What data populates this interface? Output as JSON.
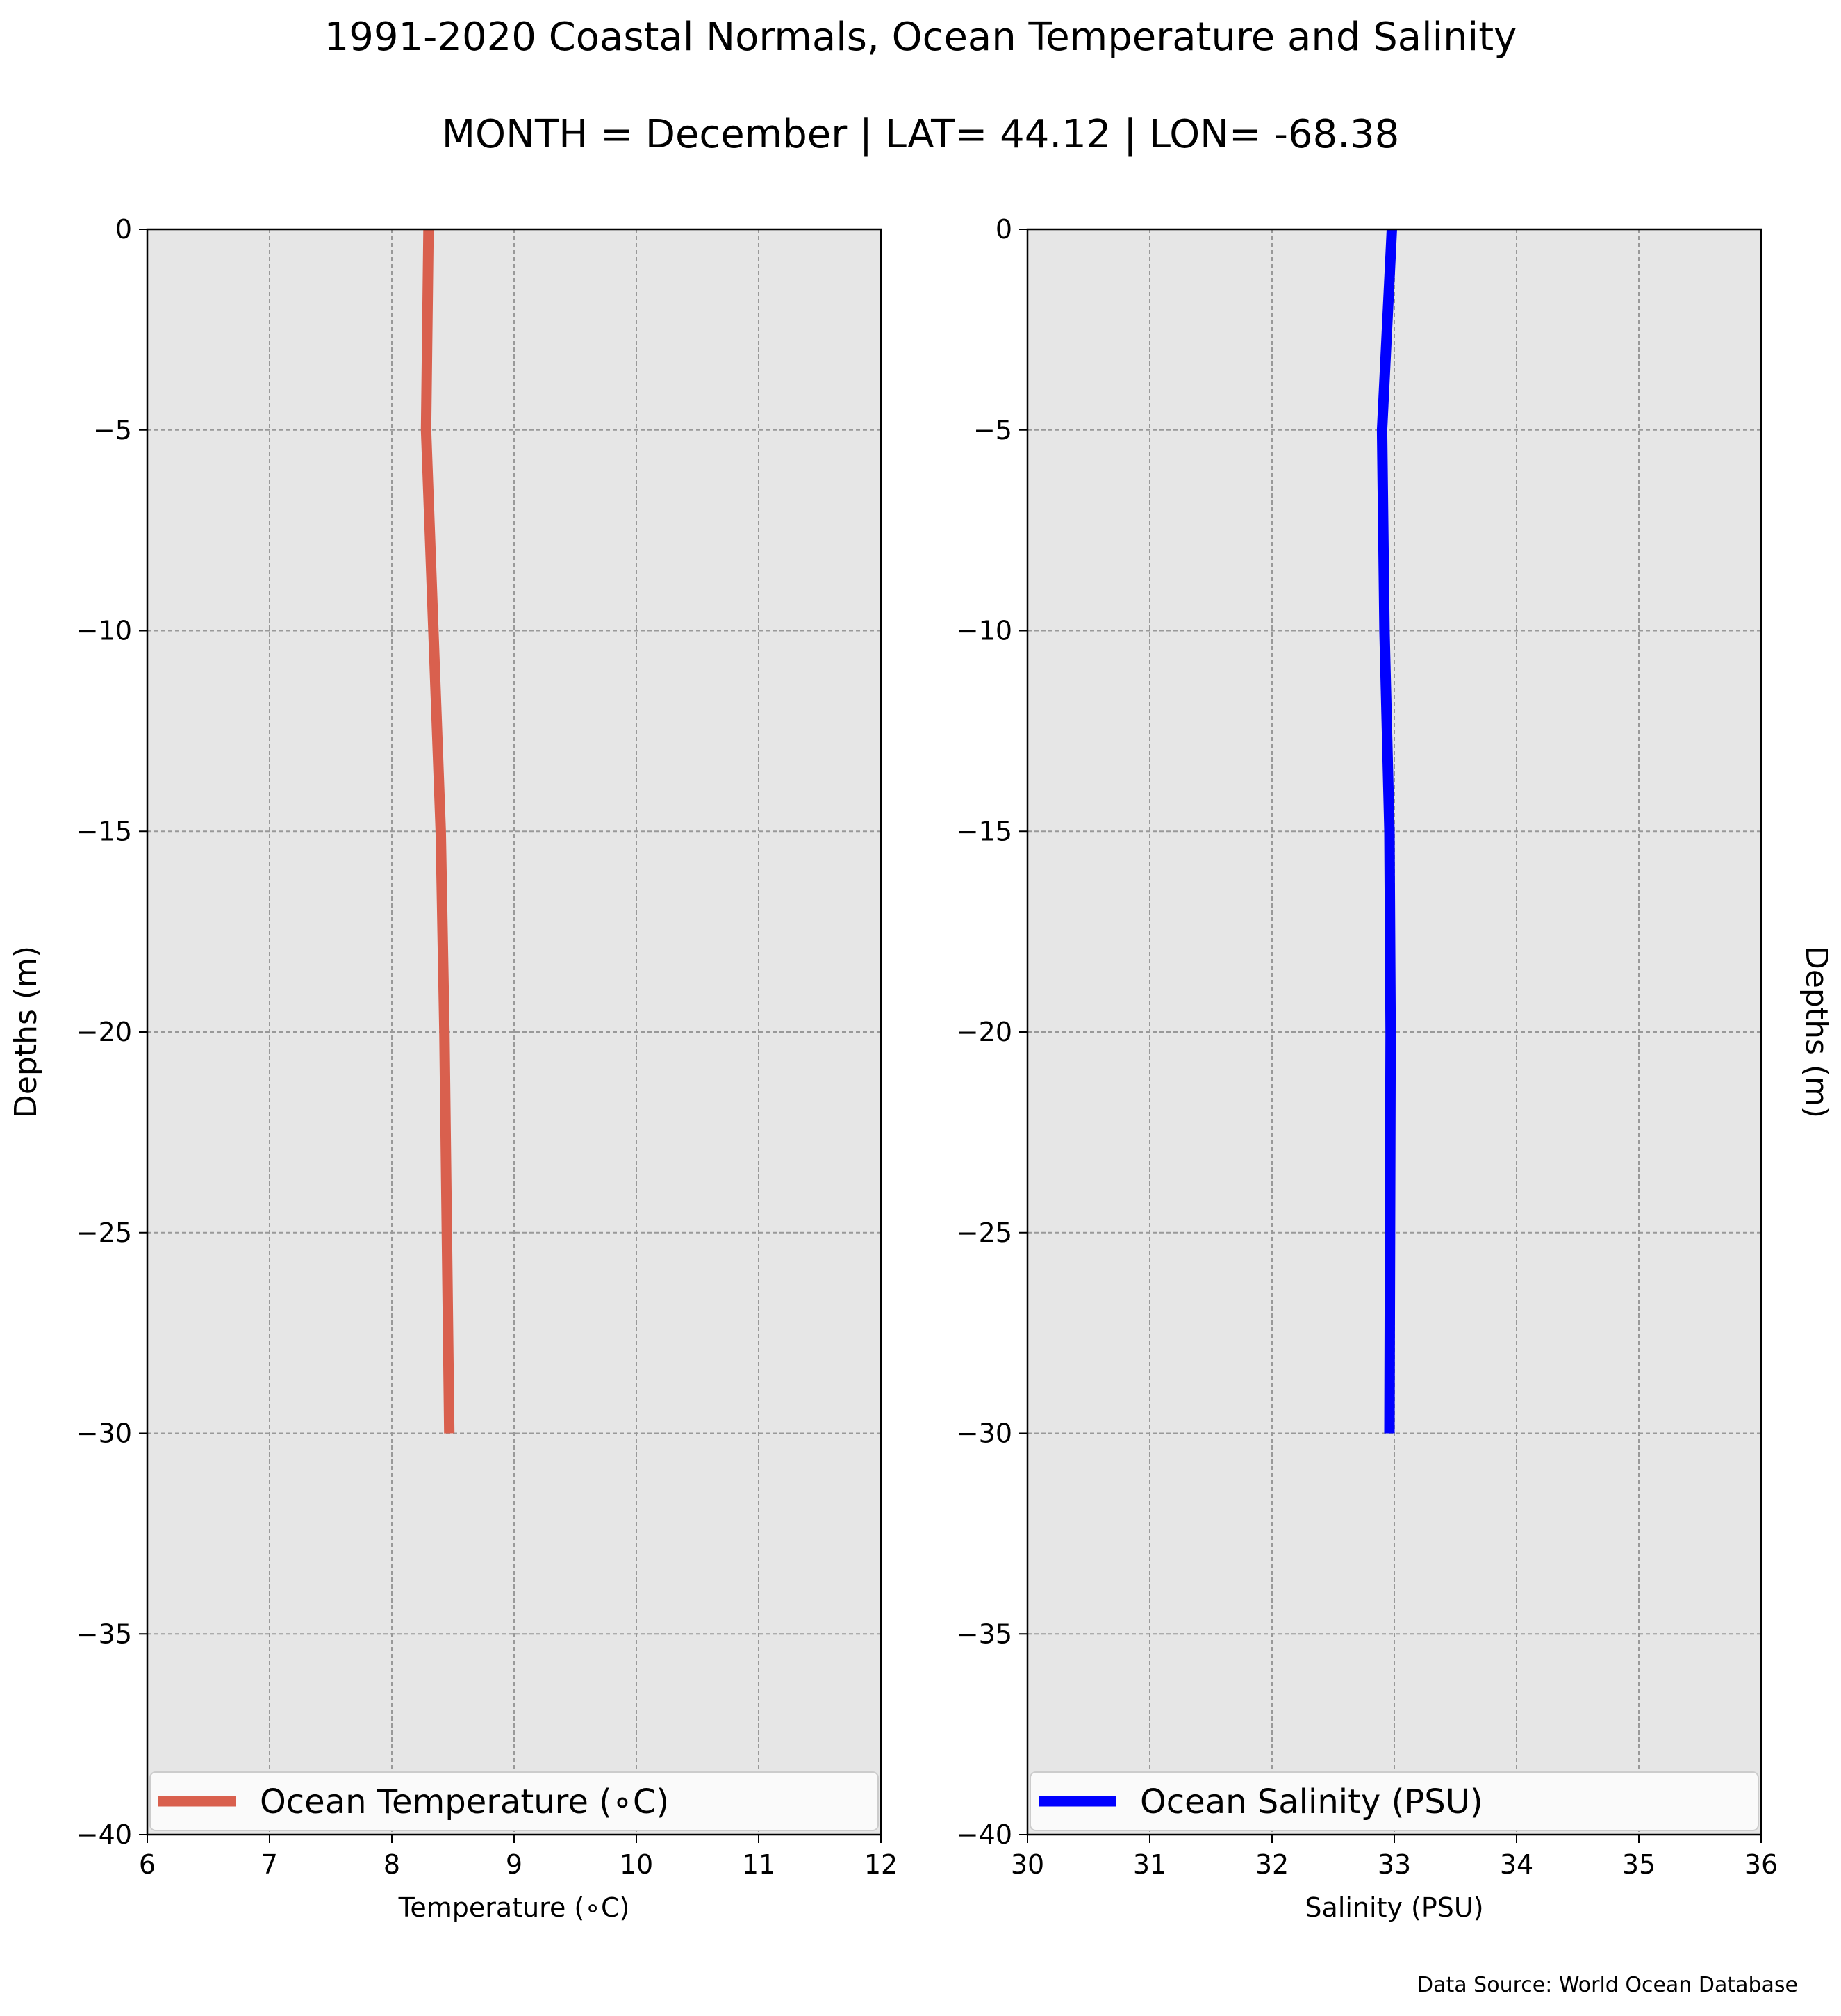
{
  "title": "1991-2020 Coastal Normals, Ocean Temperature and Salinity",
  "subtitle": "MONTH = December | LAT= 44.12 | LON= -68.38",
  "source": "Data Source: World Ocean Database",
  "colors": {
    "temperature": "#d9604e",
    "salinity": "#0000ff",
    "plot_bg": "#e6e6e6",
    "grid": "#999999"
  },
  "chart_data": [
    {
      "type": "line",
      "name": "temperature",
      "legend": "Ocean Temperature ($^\\circ$C)",
      "legend_display": "Ocean Temperature (∘C)",
      "xlabel": "Temperature (∘C)",
      "ylabel": "Depths (m)",
      "ylabel_side": "left",
      "xlim": [
        6,
        12
      ],
      "ylim": [
        -40,
        0
      ],
      "xticks": [
        "6",
        "7",
        "8",
        "9",
        "10",
        "11",
        "12"
      ],
      "yticks": [
        "0",
        "−5",
        "−10",
        "−15",
        "−20",
        "−25",
        "−30",
        "−35",
        "−40"
      ],
      "grid": true,
      "legend_loc": "lower center",
      "x": [
        8.3,
        8.28,
        8.4,
        8.43,
        8.47
      ],
      "y": [
        0,
        -5,
        -15,
        -20,
        -30
      ]
    },
    {
      "type": "line",
      "name": "salinity",
      "legend": "Ocean Salinity (PSU)",
      "xlabel": "Salinity (PSU)",
      "ylabel": "Depths (m)",
      "ylabel_side": "right",
      "xlim": [
        30,
        36
      ],
      "ylim": [
        -40,
        0
      ],
      "xticks": [
        "30",
        "31",
        "32",
        "33",
        "34",
        "35",
        "36"
      ],
      "yticks": [
        "0",
        "−5",
        "−10",
        "−15",
        "−20",
        "−25",
        "−30",
        "−35",
        "−40"
      ],
      "grid": true,
      "legend_loc": "lower center",
      "x": [
        32.98,
        32.9,
        32.92,
        32.96,
        32.97,
        32.96
      ],
      "y": [
        0,
        -5,
        -10,
        -15,
        -20,
        -30
      ]
    }
  ]
}
